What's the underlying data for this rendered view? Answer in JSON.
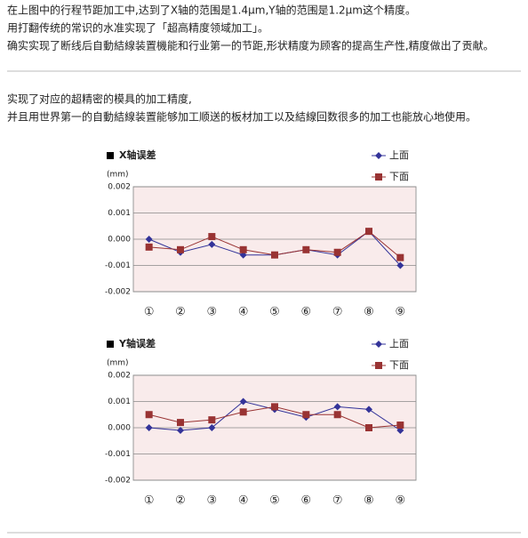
{
  "intro": [
    "在上图中的行程节距加工中,达到了X轴的范围是1.4μm,Y轴的范围是1.2μm这个精度。",
    "用打翻传统的常识的水准实现了「超高精度领域加工」。",
    "确实实现了断线后自動結線装置機能和行业第一的节距,形状精度为顾客的提高生产性,精度做出了贡献。"
  ],
  "body": [
    "实现了对应的超精密的模具的加工精度,",
    "并且用世界第一的自動結線装置能够加工顺送的板材加工以及結線回数很多的加工也能放心地使用。"
  ],
  "chart_data": [
    {
      "type": "line",
      "title": "X轴误差",
      "y_label": "(mm)",
      "categories": [
        "①",
        "②",
        "③",
        "④",
        "⑤",
        "⑥",
        "⑦",
        "⑧",
        "⑨"
      ],
      "series": [
        {
          "name": "上面",
          "color": "#333399",
          "marker": "diamond",
          "values": [
            0.0,
            -0.0005,
            -0.0002,
            -0.0006,
            -0.0006,
            -0.0004,
            -0.0006,
            0.0003,
            -0.001
          ]
        },
        {
          "name": "下面",
          "color": "#993333",
          "marker": "square",
          "values": [
            -0.0003,
            -0.0004,
            0.0001,
            -0.0004,
            -0.0006,
            -0.0004,
            -0.0005,
            0.0003,
            -0.0007
          ]
        }
      ],
      "ylim": [
        -0.002,
        0.002
      ],
      "yticks": [
        0.002,
        0.001,
        {
          "value": 0,
          "label": "0.000"
        },
        -0.001,
        -0.002
      ],
      "grid": true
    },
    {
      "type": "line",
      "title": "Y轴误差",
      "y_label": "(mm)",
      "categories": [
        "①",
        "②",
        "③",
        "④",
        "⑤",
        "⑥",
        "⑦",
        "⑧",
        "⑨"
      ],
      "series": [
        {
          "name": "上面",
          "color": "#333399",
          "marker": "diamond",
          "values": [
            0.0,
            -0.0001,
            0.0,
            0.001,
            0.0007,
            0.0004,
            0.0008,
            0.0007,
            -0.0001
          ]
        },
        {
          "name": "下面",
          "color": "#993333",
          "marker": "square",
          "values": [
            0.0005,
            0.0002,
            0.0003,
            0.0006,
            0.0008,
            0.0005,
            0.0005,
            0.0,
            0.0001
          ]
        }
      ],
      "ylim": [
        -0.002,
        0.002
      ],
      "yticks": [
        0.002,
        0.001,
        {
          "value": 0,
          "label": "0.000"
        },
        -0.001,
        -0.002
      ],
      "grid": true
    }
  ]
}
